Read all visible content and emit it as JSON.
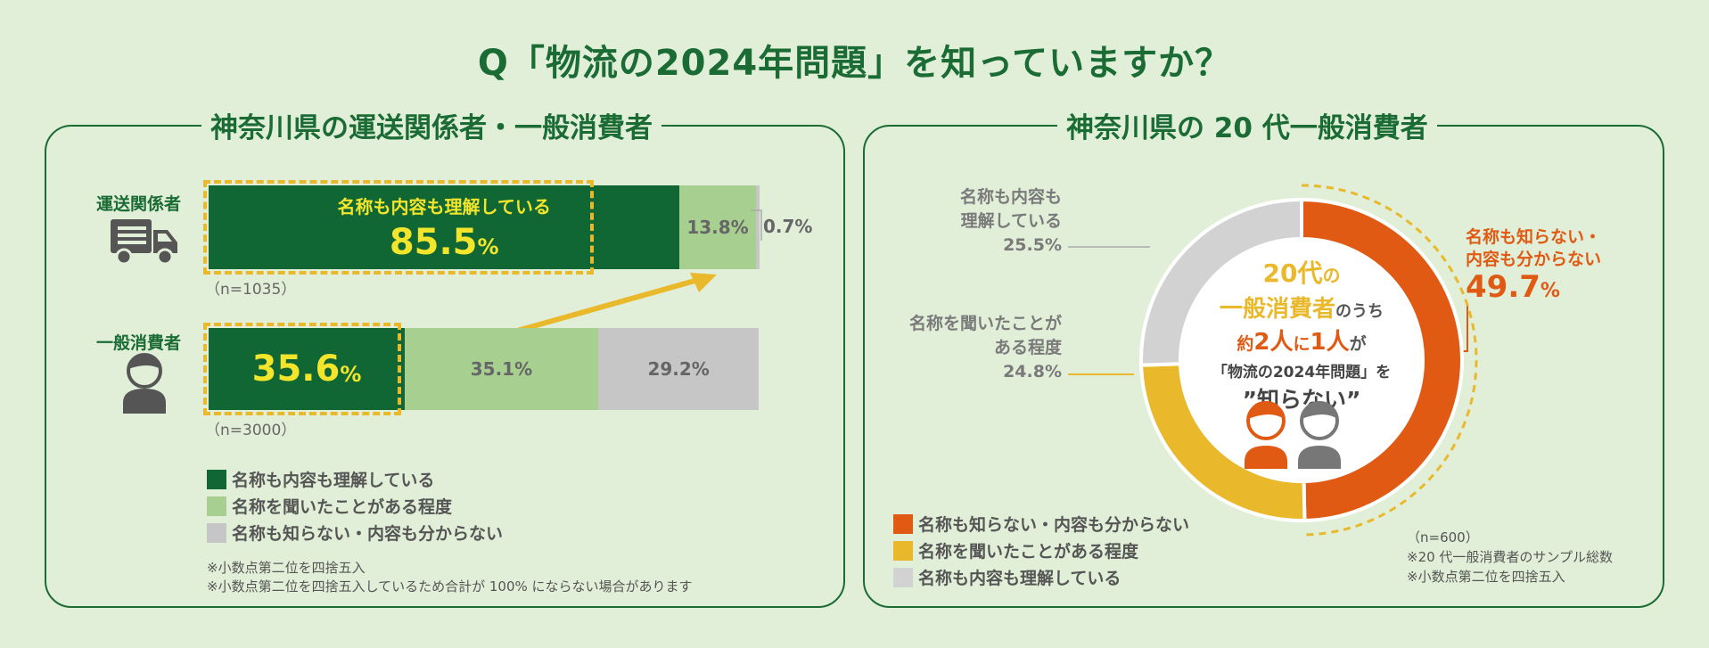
{
  "title": "Q「物流の2024年問題」を知っていますか？",
  "colors": {
    "dark_green": "#106734",
    "light_green": "#a7cf8f",
    "grey": "#c6c6c6",
    "orange": "#e05a14",
    "yellow": "#e9b92b",
    "light_grey": "#d2d2d2"
  },
  "left": {
    "title": "神奈川県の運送関係者・一般消費者",
    "rows": [
      {
        "label": "運送関係者",
        "icon": "truck-icon",
        "inner_label": "名称も内容も理解している",
        "values": [
          "85.5",
          "13.8%",
          "0.7%"
        ],
        "pct": "%",
        "n": "（n=1035）"
      },
      {
        "label": "一般消費者",
        "icon": "person-icon",
        "values": [
          "35.6",
          "35.1%",
          "29.2%"
        ],
        "pct": "%",
        "n": "（n=3000）"
      }
    ],
    "legend": [
      "名称も内容も理解している",
      "名称を聞いたことがある程度",
      "名称も知らない・内容も分からない"
    ],
    "notes": [
      "※小数点第二位を四捨五入",
      "※小数点第二位を四捨五入しているため合計が 100% にならない場合があります"
    ]
  },
  "right": {
    "title": "神奈川県の 20 代一般消費者",
    "segments": {
      "know": {
        "l1": "名称も内容も",
        "l2": "理解している",
        "value": "25.5%"
      },
      "heard": {
        "l1": "名称を聞いたことが",
        "l2": "ある程度",
        "value": "24.8%"
      },
      "unknown": {
        "l1": "名称も知らない・",
        "l2": "内容も分からない",
        "value": "49.7",
        "pct": "%"
      }
    },
    "center": {
      "a_big": "20代",
      "a_small": "の",
      "b_big": "一般消費者",
      "b_small": "のうち",
      "c_1": "約",
      "c_2": "2人",
      "c_3": "に",
      "c_4": "1人",
      "c_5": "が",
      "d": "「物流の2024年問題」を",
      "e": "”知らない”"
    },
    "legend": [
      "名称も知らない・内容も分からない",
      "名称を聞いたことがある程度",
      "名称も内容も理解している"
    ],
    "notes": [
      "（n=600）",
      "※20 代一般消費者のサンプル総数",
      "※小数点第二位を四捨五入"
    ]
  },
  "chart_data": [
    {
      "type": "bar",
      "title": "神奈川県の運送関係者・一般消費者",
      "categories": [
        "運送関係者",
        "一般消費者"
      ],
      "series": [
        {
          "name": "名称も内容も理解している",
          "values": [
            85.5,
            35.6
          ]
        },
        {
          "name": "名称を聞いたことがある程度",
          "values": [
            13.8,
            35.1
          ]
        },
        {
          "name": "名称も知らない・内容も分からない",
          "values": [
            0.7,
            29.2
          ]
        }
      ],
      "xlim": [
        0,
        100
      ],
      "stacked": true,
      "n": [
        1035,
        3000
      ]
    },
    {
      "type": "pie",
      "title": "神奈川県の 20 代一般消費者",
      "labels": [
        "名称も知らない・内容も分からない",
        "名称を聞いたことがある程度",
        "名称も内容も理解している"
      ],
      "values": [
        49.7,
        24.8,
        25.5
      ],
      "n": 600
    }
  ]
}
